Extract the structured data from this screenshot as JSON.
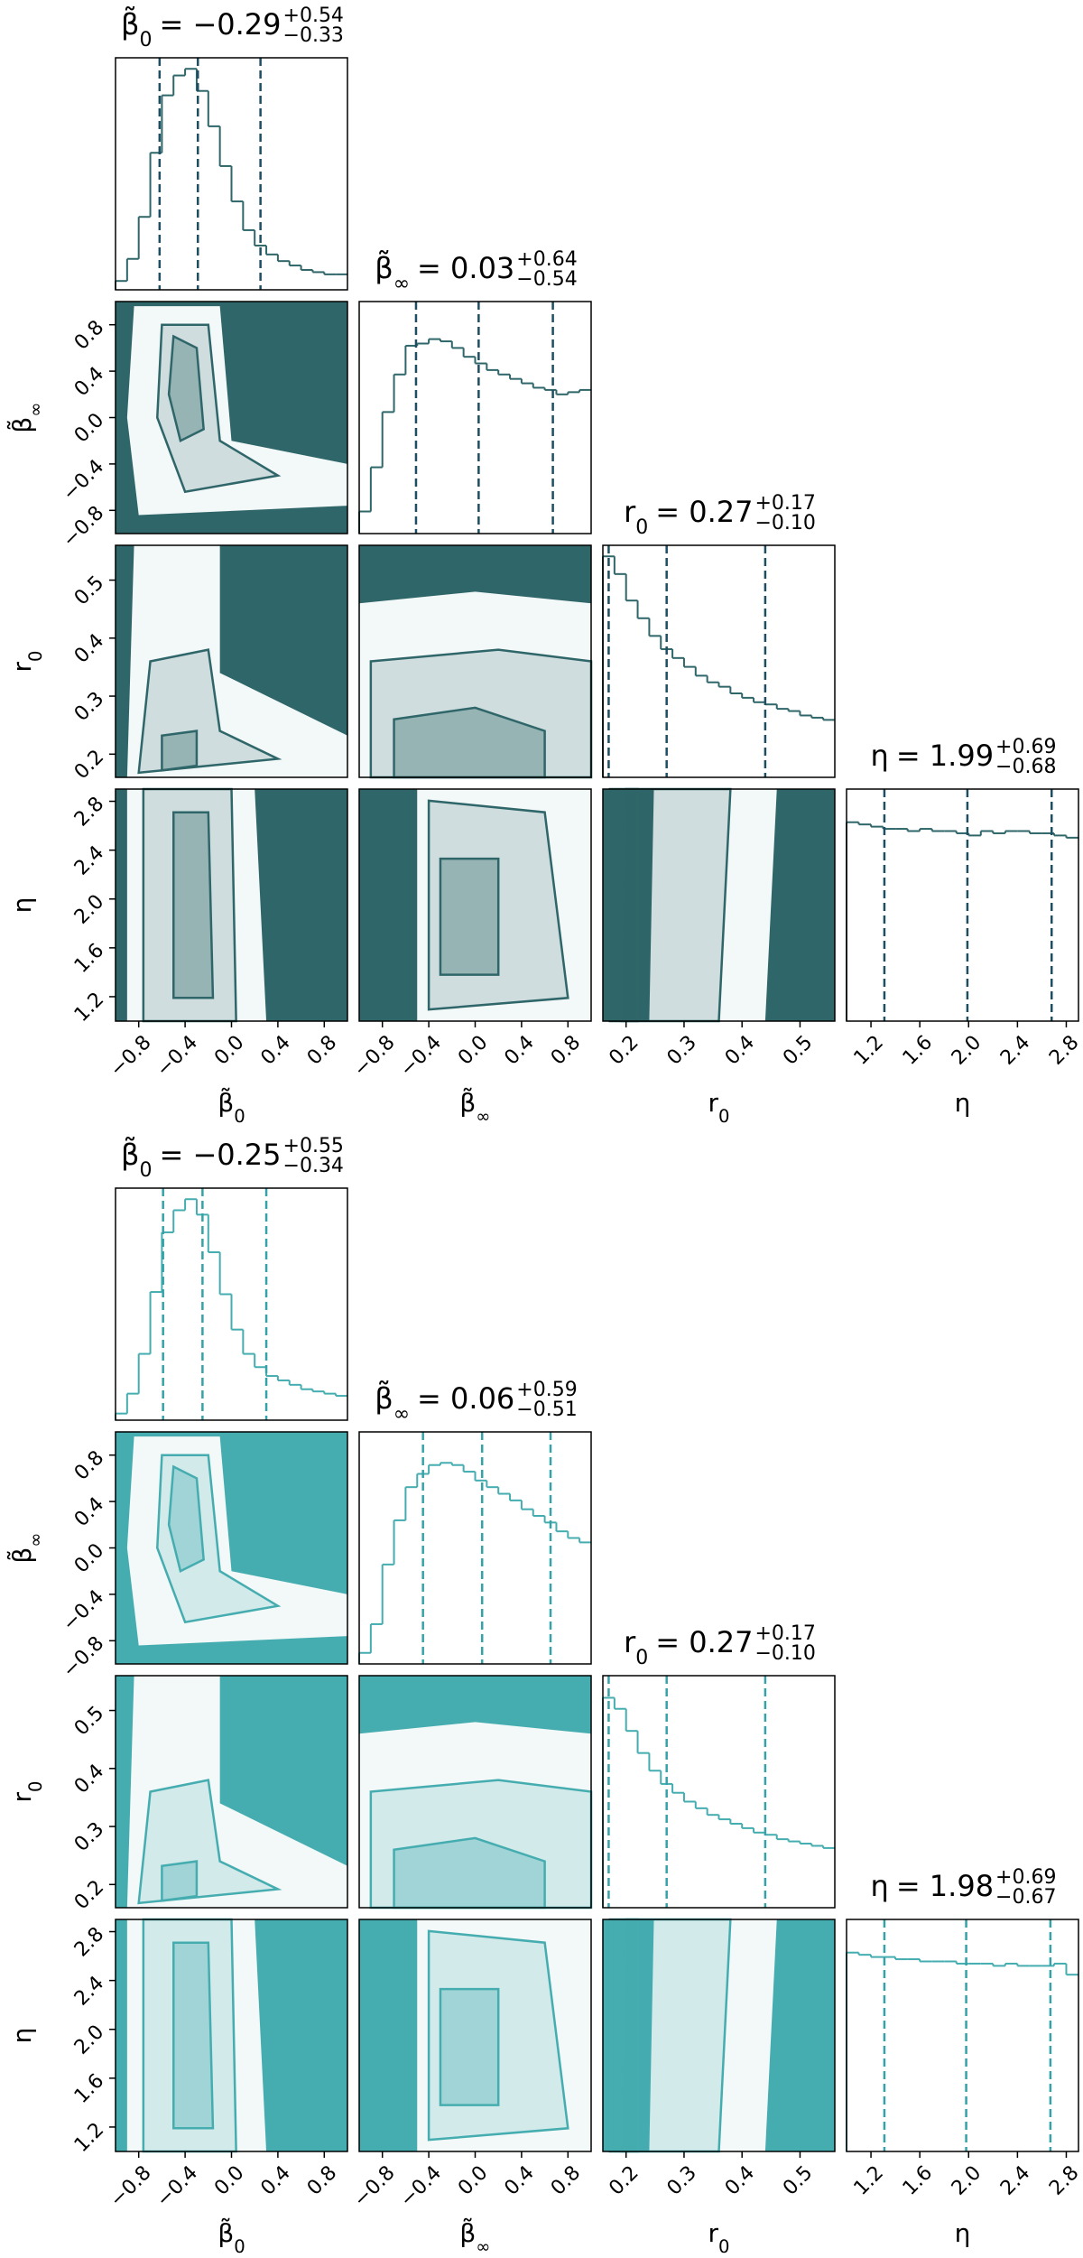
{
  "chart_data": [
    {
      "type": "corner",
      "color": "#2f6669",
      "quantile_color": "#1d4e62",
      "hist_ylim": [
        0,
        1.05
      ],
      "params": [
        {
          "symbol": "β̃",
          "sub": "0",
          "lim": [
            -1,
            1
          ],
          "ticks": [
            {
              "value": -0.8,
              "label": "−0.8"
            },
            {
              "value": -0.4,
              "label": "−0.4"
            },
            {
              "value": 0,
              "label": "0.0"
            },
            0.4,
            0.8
          ],
          "bins": [
            -1,
            -0.9,
            -0.8,
            -0.7,
            -0.6,
            -0.5,
            -0.4,
            -0.3,
            -0.2,
            -0.1,
            0,
            0.1,
            0.2,
            0.3,
            0.4,
            0.5,
            0.6,
            0.7,
            0.8,
            0.9,
            1
          ],
          "values": [
            0.04,
            0.14,
            0.33,
            0.62,
            0.88,
            0.97,
            1.0,
            0.9,
            0.74,
            0.56,
            0.4,
            0.27,
            0.2,
            0.16,
            0.13,
            0.11,
            0.09,
            0.08,
            0.07,
            0.07
          ],
          "quantiles": [
            -0.62,
            -0.29,
            0.25
          ],
          "title": {
            "value": "= −0.29",
            "plus": "+0.54",
            "minus": "−0.33"
          }
        },
        {
          "symbol": "β̃",
          "sub": "∞",
          "lim": [
            -1,
            1
          ],
          "ticks": [
            {
              "value": -0.8,
              "label": "−0.8"
            },
            {
              "value": -0.4,
              "label": "−0.4"
            },
            {
              "value": 0,
              "label": "0.0"
            },
            0.4,
            0.8
          ],
          "bins": [
            -1,
            -0.9,
            -0.8,
            -0.7,
            -0.6,
            -0.5,
            -0.4,
            -0.3,
            -0.2,
            -0.1,
            0,
            0.1,
            0.2,
            0.3,
            0.4,
            0.5,
            0.6,
            0.7,
            0.8,
            0.9,
            1
          ],
          "values": [
            0.1,
            0.3,
            0.55,
            0.72,
            0.85,
            0.86,
            0.88,
            0.87,
            0.84,
            0.8,
            0.77,
            0.74,
            0.72,
            0.7,
            0.68,
            0.66,
            0.65,
            0.63,
            0.64,
            0.65
          ],
          "quantiles": [
            -0.51,
            0.03,
            0.67
          ],
          "title": {
            "value": "= 0.03",
            "plus": "+0.64",
            "minus": "−0.54"
          }
        },
        {
          "symbol": "r",
          "sub": "0",
          "lim": [
            0.16,
            0.56
          ],
          "ticks": [
            0.2,
            0.3,
            0.4,
            0.5
          ],
          "bins": [
            0.16,
            0.18,
            0.2,
            0.22,
            0.24,
            0.26,
            0.28,
            0.3,
            0.32,
            0.34,
            0.36,
            0.38,
            0.4,
            0.42,
            0.44,
            0.46,
            0.48,
            0.5,
            0.52,
            0.54,
            0.56
          ],
          "values": [
            1.0,
            0.92,
            0.8,
            0.72,
            0.64,
            0.58,
            0.54,
            0.5,
            0.46,
            0.43,
            0.41,
            0.38,
            0.36,
            0.34,
            0.33,
            0.31,
            0.3,
            0.28,
            0.27,
            0.26
          ],
          "quantiles": [
            0.17,
            0.27,
            0.44
          ],
          "title": {
            "value": "= 0.27",
            "plus": "+0.17",
            "minus": "−0.10"
          }
        },
        {
          "symbol": "η",
          "lim": [
            1.0,
            2.9
          ],
          "ticks": [
            1.2,
            1.6,
            {
              "value": 2,
              "label": "2.0"
            },
            2.4,
            2.8
          ],
          "bins": [
            1.0,
            1.1,
            1.2,
            1.3,
            1.4,
            1.5,
            1.6,
            1.7,
            1.8,
            1.9,
            2.0,
            2.1,
            2.2,
            2.3,
            2.4,
            2.5,
            2.6,
            2.7,
            2.8,
            2.9
          ],
          "values": [
            0.9,
            0.89,
            0.88,
            0.87,
            0.87,
            0.86,
            0.87,
            0.86,
            0.86,
            0.85,
            0.84,
            0.86,
            0.85,
            0.86,
            0.86,
            0.85,
            0.85,
            0.84,
            0.83
          ],
          "quantiles": [
            1.31,
            1.99,
            2.68
          ],
          "title": {
            "value": "= 1.99",
            "plus": "+0.69",
            "minus": "−0.68"
          }
        }
      ]
    },
    {
      "type": "corner",
      "color": "#45adb0",
      "quantile_color": "#36a2a8",
      "hist_ylim": [
        0,
        1.05
      ],
      "params": [
        {
          "symbol": "β̃",
          "sub": "0",
          "lim": [
            -1,
            1
          ],
          "ticks": [
            {
              "value": -0.8,
              "label": "−0.8"
            },
            {
              "value": -0.4,
              "label": "−0.4"
            },
            {
              "value": 0,
              "label": "0.0"
            },
            0.4,
            0.8
          ],
          "bins": [
            -1,
            -0.9,
            -0.8,
            -0.7,
            -0.6,
            -0.5,
            -0.4,
            -0.3,
            -0.2,
            -0.1,
            0,
            0.1,
            0.2,
            0.3,
            0.4,
            0.5,
            0.6,
            0.7,
            0.8,
            0.9,
            1
          ],
          "values": [
            0.03,
            0.12,
            0.3,
            0.58,
            0.85,
            0.95,
            1.0,
            0.93,
            0.76,
            0.57,
            0.41,
            0.3,
            0.24,
            0.2,
            0.18,
            0.16,
            0.14,
            0.13,
            0.12,
            0.11
          ],
          "quantiles": [
            -0.59,
            -0.25,
            0.3
          ],
          "title": {
            "value": "= −0.25",
            "plus": "+0.55",
            "minus": "−0.34"
          }
        },
        {
          "symbol": "β̃",
          "sub": "∞",
          "lim": [
            -1,
            1
          ],
          "ticks": [
            {
              "value": -0.8,
              "label": "−0.8"
            },
            {
              "value": -0.4,
              "label": "−0.4"
            },
            {
              "value": 0,
              "label": "0.0"
            },
            0.4,
            0.8
          ],
          "bins": [
            -1,
            -0.9,
            -0.8,
            -0.7,
            -0.6,
            -0.5,
            -0.4,
            -0.3,
            -0.2,
            -0.1,
            0,
            0.1,
            0.2,
            0.3,
            0.4,
            0.5,
            0.6,
            0.7,
            0.8,
            0.9,
            1
          ],
          "values": [
            0.05,
            0.18,
            0.45,
            0.65,
            0.8,
            0.86,
            0.9,
            0.91,
            0.9,
            0.87,
            0.83,
            0.8,
            0.77,
            0.74,
            0.7,
            0.67,
            0.64,
            0.6,
            0.57,
            0.55
          ],
          "quantiles": [
            -0.45,
            0.06,
            0.65
          ],
          "title": {
            "value": "= 0.06",
            "plus": "+0.59",
            "minus": "−0.51"
          }
        },
        {
          "symbol": "r",
          "sub": "0",
          "lim": [
            0.16,
            0.56
          ],
          "ticks": [
            0.2,
            0.3,
            0.4,
            0.5
          ],
          "bins": [
            0.16,
            0.18,
            0.2,
            0.22,
            0.24,
            0.26,
            0.28,
            0.3,
            0.32,
            0.34,
            0.36,
            0.38,
            0.4,
            0.42,
            0.44,
            0.46,
            0.48,
            0.5,
            0.52,
            0.54,
            0.56
          ],
          "values": [
            0.95,
            0.9,
            0.8,
            0.7,
            0.62,
            0.56,
            0.52,
            0.48,
            0.45,
            0.42,
            0.4,
            0.38,
            0.36,
            0.34,
            0.33,
            0.31,
            0.3,
            0.29,
            0.28,
            0.27
          ],
          "quantiles": [
            0.17,
            0.27,
            0.44
          ],
          "title": {
            "value": "= 0.27",
            "plus": "+0.17",
            "minus": "−0.10"
          }
        },
        {
          "symbol": "η",
          "lim": [
            1.0,
            2.9
          ],
          "ticks": [
            1.2,
            1.6,
            {
              "value": 2,
              "label": "2.0"
            },
            2.4,
            2.8
          ],
          "bins": [
            1.0,
            1.1,
            1.2,
            1.3,
            1.4,
            1.5,
            1.6,
            1.7,
            1.8,
            1.9,
            2.0,
            2.1,
            2.2,
            2.3,
            2.4,
            2.5,
            2.6,
            2.7,
            2.8,
            2.9
          ],
          "values": [
            0.9,
            0.89,
            0.88,
            0.88,
            0.87,
            0.87,
            0.86,
            0.86,
            0.86,
            0.85,
            0.85,
            0.85,
            0.84,
            0.85,
            0.84,
            0.84,
            0.84,
            0.85,
            0.8
          ],
          "quantiles": [
            1.31,
            1.98,
            2.67
          ],
          "title": {
            "value": "= 1.98",
            "plus": "+0.69",
            "minus": "−0.67"
          }
        }
      ]
    }
  ]
}
